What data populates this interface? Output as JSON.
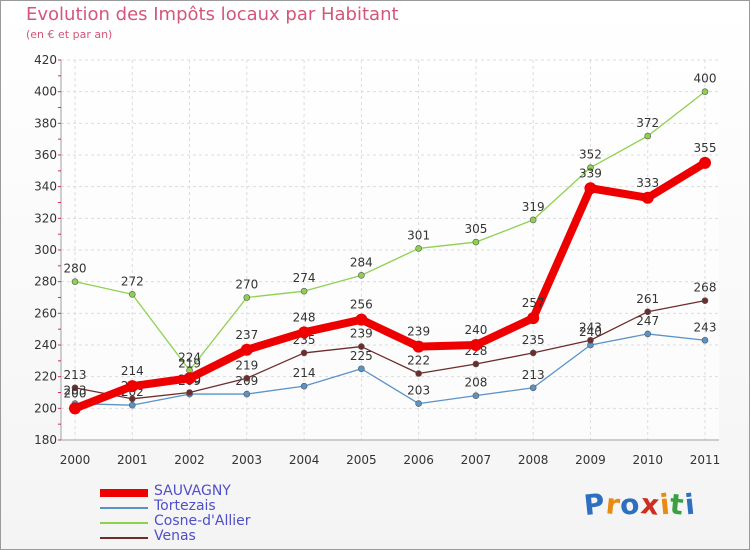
{
  "title": "Evolution des Impôts locaux par Habitant",
  "subtitle": "(en € et par an)",
  "logo": {
    "chars": [
      "P",
      "r",
      "o",
      "x",
      "i",
      "t",
      "i"
    ],
    "colors": [
      "#2e6fbe",
      "#e88b12",
      "#2e6fbe",
      "#cc2f1e",
      "#e88b12",
      "#37a23e",
      "#2e6fbe"
    ]
  },
  "chart_data": {
    "type": "line",
    "title": "Evolution des Impôts locaux par Habitant",
    "subtitle": "(en € et par an)",
    "x": [
      "2000",
      "2001",
      "2002",
      "2003",
      "2004",
      "2005",
      "2006",
      "2007",
      "2008",
      "2009",
      "2010",
      "2011"
    ],
    "ylim": [
      180,
      420
    ],
    "yticks": [
      180,
      200,
      220,
      240,
      260,
      280,
      300,
      320,
      340,
      360,
      380,
      400,
      420
    ],
    "grid": true,
    "legend_position": "bottom-left",
    "series": [
      {
        "name": "Tortezais",
        "color": "#5b93c7",
        "values": [
          203,
          202,
          209,
          209,
          214,
          225,
          203,
          208,
          213,
          240,
          247,
          243
        ]
      },
      {
        "name": "Cosne-d'Allier",
        "color": "#8ed14f",
        "values": [
          280,
          272,
          224,
          270,
          274,
          284,
          301,
          305,
          319,
          352,
          372,
          400
        ]
      },
      {
        "name": "Venas",
        "color": "#6e2d2d",
        "values": [
          213,
          206,
          210,
          219,
          235,
          239,
          222,
          228,
          235,
          243,
          261,
          268
        ]
      },
      {
        "name": "SAUVAGNY",
        "color": "#ee0000",
        "values": [
          200,
          214,
          219,
          237,
          248,
          256,
          239,
          240,
          257,
          339,
          333,
          355
        ]
      }
    ],
    "legend": [
      "SAUVAGNY",
      "Tortezais",
      "Cosne-d'Allier",
      "Venas"
    ]
  }
}
